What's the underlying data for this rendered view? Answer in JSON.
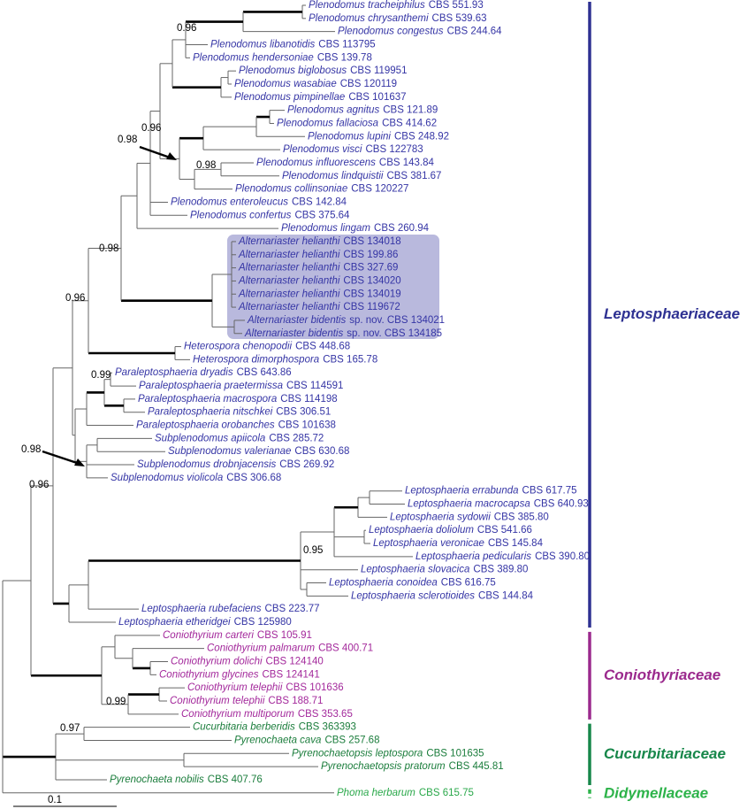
{
  "families": [
    {
      "name": "Leptosphaeriaceae",
      "color": "#2e3192",
      "text_color": "#3535a5",
      "leaves": [
        {
          "taxon": "Plenodomus tracheiphilus",
          "strain": "CBS 551.93"
        },
        {
          "taxon": "Plenodomus chrysanthemi",
          "strain": "CBS 539.63"
        },
        {
          "taxon": "Plenodomus congestus",
          "strain": "CBS 244.64"
        },
        {
          "taxon": "Plenodomus libanotidis",
          "strain": "CBS 113795"
        },
        {
          "taxon": "Plenodomus hendersoniae",
          "strain": "CBS 139.78"
        },
        {
          "taxon": "Plenodomus biglobosus",
          "strain": "CBS 119951"
        },
        {
          "taxon": "Plenodomus wasabiae",
          "strain": "CBS 120119"
        },
        {
          "taxon": "Plenodomus pimpinellae",
          "strain": "CBS 101637"
        },
        {
          "taxon": "Plenodomus agnitus",
          "strain": "CBS 121.89"
        },
        {
          "taxon": "Plenodomus fallaciosa",
          "strain": "CBS 414.62"
        },
        {
          "taxon": "Plenodomus lupini",
          "strain": "CBS 248.92"
        },
        {
          "taxon": "Plenodomus visci",
          "strain": "CBS 122783"
        },
        {
          "taxon": "Plenodomus influorescens",
          "strain": "CBS 143.84"
        },
        {
          "taxon": "Plenodomus lindquistii",
          "strain": "CBS 381.67"
        },
        {
          "taxon": "Plenodomus collinsoniae",
          "strain": "CBS 120227"
        },
        {
          "taxon": "Plenodomus enteroleucus",
          "strain": "CBS 142.84"
        },
        {
          "taxon": "Plenodomus confertus",
          "strain": "CBS 375.64"
        },
        {
          "taxon": "Plenodomus lingam",
          "strain": "CBS 260.94"
        },
        {
          "taxon": "Alternariaster helianthi",
          "strain": "CBS 134018"
        },
        {
          "taxon": "Alternariaster helianthi",
          "strain": "CBS 199.86"
        },
        {
          "taxon": "Alternariaster helianthi",
          "strain": "CBS 327.69"
        },
        {
          "taxon": "Alternariaster helianthi",
          "strain": "CBS 134020"
        },
        {
          "taxon": "Alternariaster helianthi",
          "strain": "CBS 134019"
        },
        {
          "taxon": "Alternariaster helianthi",
          "strain": "CBS 119672"
        },
        {
          "taxon": "Alternariaster bidentis",
          "strain": "sp. nov. CBS 134021"
        },
        {
          "taxon": "Alternariaster bidentis",
          "strain": "sp. nov. CBS 134185"
        },
        {
          "taxon": "Heterospora chenopodii",
          "strain": "CBS 448.68"
        },
        {
          "taxon": "Heterospora dimorphospora",
          "strain": "CBS 165.78"
        },
        {
          "taxon": "Paraleptosphaeria dryadis",
          "strain": "CBS 643.86"
        },
        {
          "taxon": "Paraleptosphaeria praetermissa",
          "strain": "CBS 114591"
        },
        {
          "taxon": "Paraleptosphaeria macrospora",
          "strain": "CBS 114198"
        },
        {
          "taxon": "Paraleptosphaeria nitschkei",
          "strain": "CBS 306.51"
        },
        {
          "taxon": "Paraleptosphaeria orobanches",
          "strain": "CBS 101638"
        },
        {
          "taxon": "Subplenodomus apiicola",
          "strain": "CBS 285.72"
        },
        {
          "taxon": "Subplenodomus valerianae",
          "strain": "CBS 630.68"
        },
        {
          "taxon": "Subplenodomus drobnjacensis",
          "strain": "CBS 269.92"
        },
        {
          "taxon": "Subplenodomus violicola",
          "strain": "CBS 306.68"
        },
        {
          "taxon": "Leptosphaeria errabunda",
          "strain": "CBS 617.75"
        },
        {
          "taxon": "Leptosphaeria macrocapsa",
          "strain": "CBS 640.93"
        },
        {
          "taxon": "Leptosphaeria sydowii",
          "strain": "CBS 385.80"
        },
        {
          "taxon": "Leptosphaeria doliolum",
          "strain": "CBS 541.66"
        },
        {
          "taxon": "Leptosphaeria veronicae",
          "strain": "CBS 145.84"
        },
        {
          "taxon": "Leptosphaeria pedicularis",
          "strain": "CBS 390.80"
        },
        {
          "taxon": "Leptosphaeria slovacica",
          "strain": "CBS 389.80"
        },
        {
          "taxon": "Leptosphaeria conoidea",
          "strain": "CBS 616.75"
        },
        {
          "taxon": "Leptosphaeria sclerotioides",
          "strain": "CBS 144.84"
        },
        {
          "taxon": "Leptosphaeria rubefaciens",
          "strain": "CBS 223.77"
        },
        {
          "taxon": "Leptosphaeria etheridgei",
          "strain": "CBS 125980"
        }
      ]
    },
    {
      "name": "Coniothyriaceae",
      "color": "#9b2a8d",
      "text_color": "#a3289b",
      "leaves": [
        {
          "taxon": "Coniothyrium carteri",
          "strain": "CBS 105.91"
        },
        {
          "taxon": "Coniothyrium palmarum",
          "strain": "CBS 400.71"
        },
        {
          "taxon": "Coniothyrium dolichi",
          "strain": "CBS 124140"
        },
        {
          "taxon": "Coniothyrium glycines",
          "strain": "CBS 124141"
        },
        {
          "taxon": "Coniothyrium telephii",
          "strain": "CBS 101636"
        },
        {
          "taxon": "Coniothyrium telephii",
          "strain": "CBS 188.71"
        },
        {
          "taxon": "Coniothyrium multiporum",
          "strain": "CBS 353.65"
        }
      ]
    },
    {
      "name": "Cucurbitariaceae",
      "color": "#17874a",
      "text_color": "#1b7d3c",
      "leaves": [
        {
          "taxon": "Cucurbitaria berberidis",
          "strain": "CBS 363393"
        },
        {
          "taxon": "Pyrenochaeta cava",
          "strain": "CBS 257.68"
        },
        {
          "taxon": "Pyrenochaetopsis leptospora",
          "strain": "CBS 101635"
        },
        {
          "taxon": "Pyrenochaetopsis pratorum",
          "strain": "CBS 445.81"
        },
        {
          "taxon": "Pyrenochaeta nobilis",
          "strain": "CBS 407.76"
        }
      ]
    },
    {
      "name": "Didymellaceae",
      "color": "#2db34a",
      "text_color": "#2aa84a",
      "dashed": true,
      "leaves": [
        {
          "taxon": "Phoma herbarum",
          "strain": "CBS 615.75"
        }
      ]
    }
  ],
  "support_values": [
    0.96,
    0.96,
    0.98,
    0.98,
    0.98,
    0.96,
    0.99,
    0.98,
    0.96,
    0.95,
    0.99,
    0.97
  ],
  "scale_bar": 0.1
}
